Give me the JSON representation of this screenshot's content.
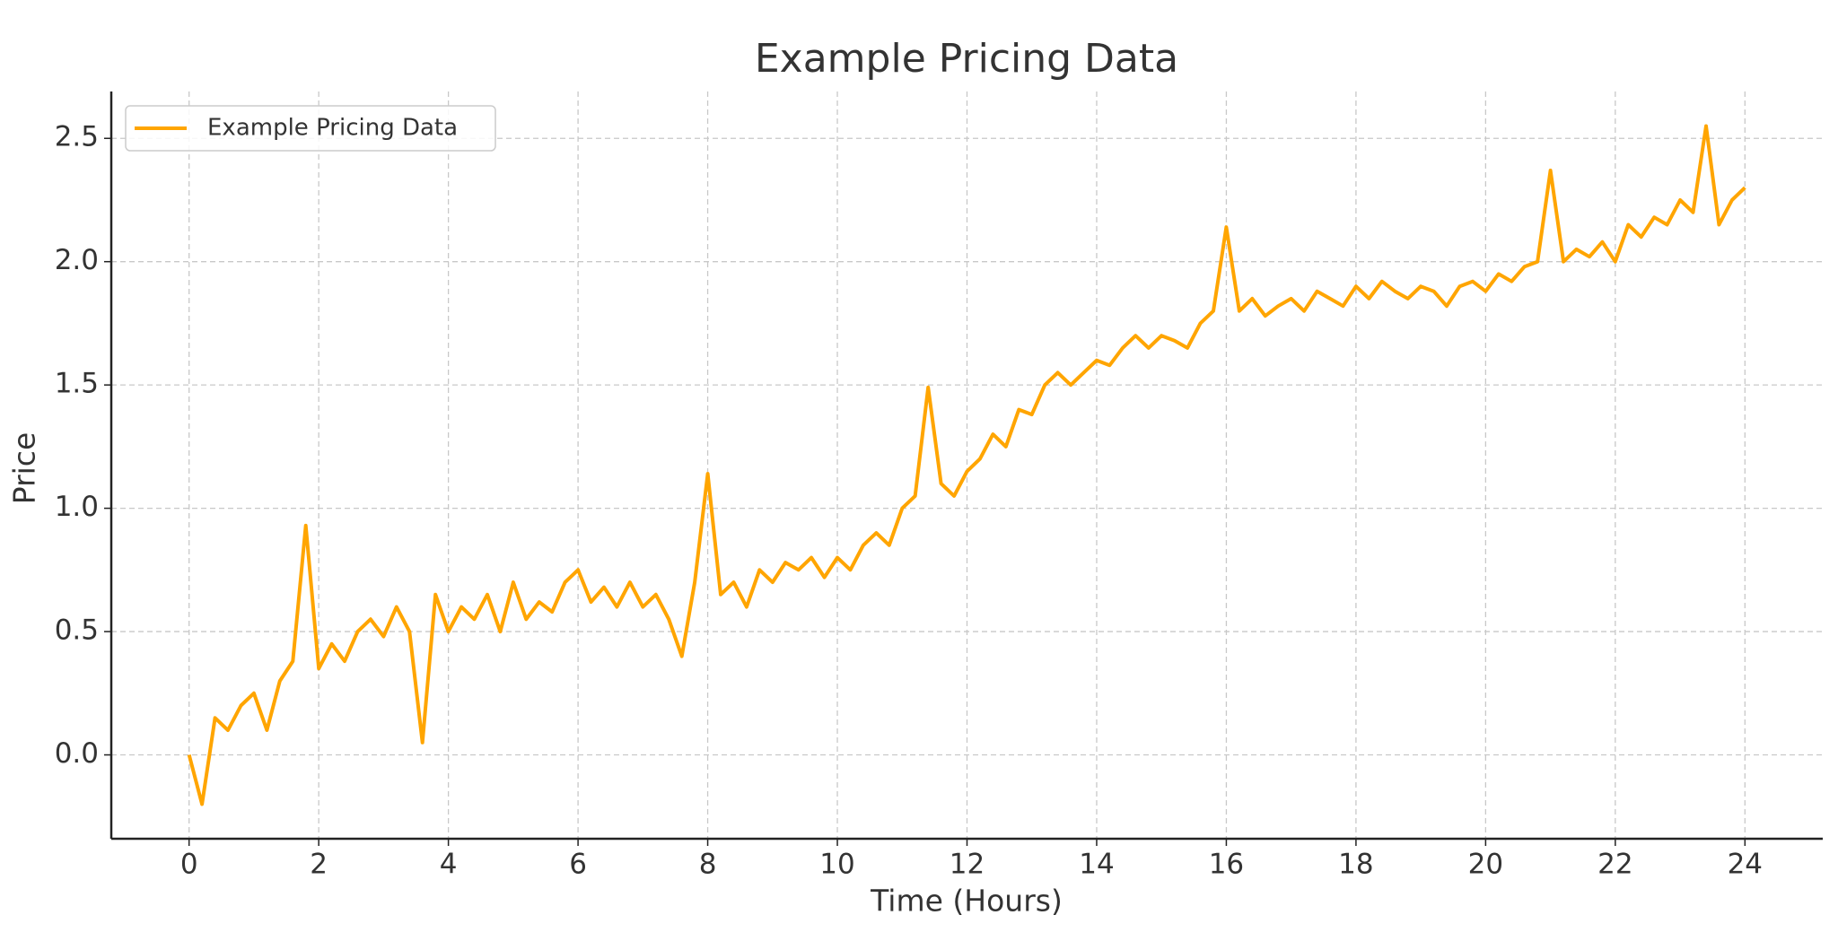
{
  "chart_data": {
    "type": "line",
    "title": "Example Pricing Data",
    "x_label": "Time (Hours)",
    "y_label": "Price",
    "x": [
      0,
      0.2,
      0.4,
      0.6,
      0.8,
      1,
      1.2,
      1.4,
      1.6,
      1.8,
      2,
      2.2,
      2.4,
      2.6,
      2.8,
      3,
      3.2,
      3.4,
      3.6,
      3.8,
      4,
      4.2,
      4.4,
      4.6,
      4.8,
      5,
      5.2,
      5.4,
      5.6,
      5.8,
      6,
      6.2,
      6.4,
      6.6,
      6.8,
      7,
      7.2,
      7.4,
      7.6,
      7.8,
      8,
      8.2,
      8.4,
      8.6,
      8.8,
      9,
      9.2,
      9.4,
      9.6,
      9.8,
      10,
      10.2,
      10.4,
      10.6,
      10.8,
      11,
      11.2,
      11.4,
      11.6,
      11.8,
      12,
      12.2,
      12.4,
      12.6,
      12.8,
      13,
      13.2,
      13.4,
      13.6,
      13.8,
      14,
      14.2,
      14.4,
      14.6,
      14.8,
      15,
      15.2,
      15.4,
      15.6,
      15.8,
      16,
      16.2,
      16.4,
      16.6,
      16.8,
      17,
      17.2,
      17.4,
      17.6,
      17.8,
      18,
      18.2,
      18.4,
      18.6,
      18.8,
      19,
      19.2,
      19.4,
      19.6,
      19.8,
      20,
      20.2,
      20.4,
      20.6,
      20.8,
      21,
      21.2,
      21.4,
      21.6,
      21.8,
      22,
      22.2,
      22.4,
      22.6,
      22.8,
      23,
      23.2,
      23.4,
      23.6,
      23.8,
      24
    ],
    "series": [
      {
        "name": "Example Pricing Data",
        "color": "#ffa500",
        "values": [
          0,
          -0.2,
          0.15,
          0.1,
          0.2,
          0.25,
          0.1,
          0.3,
          0.38,
          0.93,
          0.35,
          0.45,
          0.38,
          0.5,
          0.55,
          0.48,
          0.6,
          0.5,
          0.05,
          0.65,
          0.5,
          0.6,
          0.55,
          0.65,
          0.5,
          0.7,
          0.55,
          0.62,
          0.58,
          0.7,
          0.75,
          0.62,
          0.68,
          0.6,
          0.7,
          0.6,
          0.65,
          0.55,
          0.4,
          0.7,
          1.14,
          0.65,
          0.7,
          0.6,
          0.75,
          0.7,
          0.78,
          0.75,
          0.8,
          0.72,
          0.8,
          0.75,
          0.85,
          0.9,
          0.85,
          1,
          1.05,
          1.49,
          1.1,
          1.05,
          1.15,
          1.2,
          1.3,
          1.25,
          1.4,
          1.38,
          1.5,
          1.55,
          1.5,
          1.55,
          1.6,
          1.58,
          1.65,
          1.7,
          1.65,
          1.7,
          1.68,
          1.65,
          1.75,
          1.8,
          2.14,
          1.8,
          1.85,
          1.78,
          1.82,
          1.85,
          1.8,
          1.88,
          1.85,
          1.82,
          1.9,
          1.85,
          1.92,
          1.88,
          1.85,
          1.9,
          1.88,
          1.82,
          1.9,
          1.92,
          1.88,
          1.95,
          1.92,
          1.98,
          2,
          2.37,
          2,
          2.05,
          2.02,
          2.08,
          2,
          2.15,
          2.1,
          2.18,
          2.15,
          2.25,
          2.2,
          2.55,
          2.15,
          2.25,
          2.3
        ]
      }
    ],
    "xlim": [
      -1.2,
      25.2
    ],
    "ylim": [
      -0.34,
      2.69
    ],
    "xticks": [
      0,
      2,
      4,
      6,
      8,
      10,
      12,
      14,
      16,
      18,
      20,
      22,
      24
    ],
    "yticks": [
      {
        "value": 0,
        "label": "0.0"
      },
      0.5,
      {
        "value": 1,
        "label": "1.0"
      },
      1.5,
      {
        "value": 2,
        "label": "2.0"
      },
      2.5
    ],
    "grid": true,
    "legend": "upper-left"
  }
}
